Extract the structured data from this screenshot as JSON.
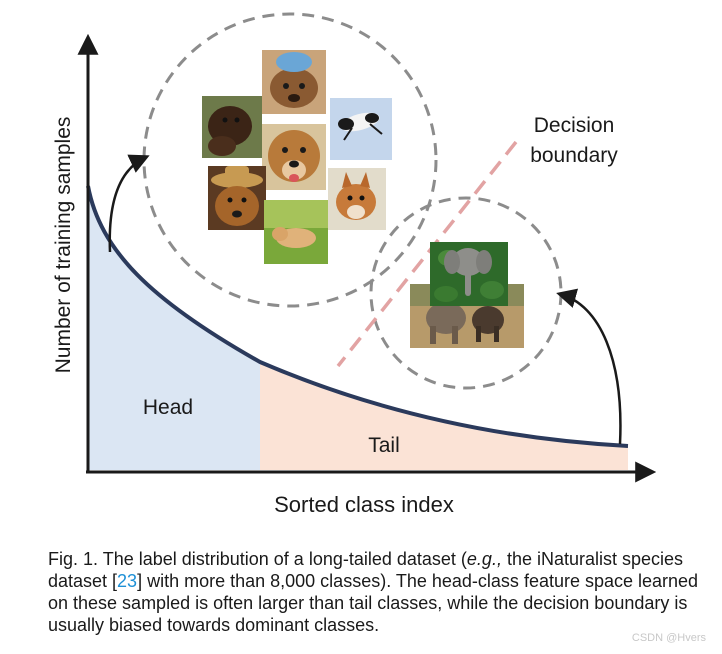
{
  "figure": {
    "y_axis_label": "Number of training samples",
    "x_axis_label": "Sorted class index",
    "head_label": "Head",
    "tail_label": "Tail",
    "boundary_label_line1": "Decision",
    "boundary_label_line2": "boundary",
    "colors": {
      "head_fill": "#dbe6f3",
      "tail_fill": "#fbe3d6",
      "curve": "#2b3a5c",
      "boundary": "#e2a3a3",
      "circle": "#8c8c8c",
      "axis": "#1a1a1a"
    },
    "images": {
      "head_cluster": [
        "dog-with-ice-pack",
        "dog-running",
        "dog-dark-fluffy",
        "dog-golden-retriever",
        "dog-wearing-hat",
        "dog-fox-like",
        "dog-lying-on-grass"
      ],
      "tail_cluster": [
        "elephant-in-foliage",
        "elephants-walking"
      ]
    }
  },
  "caption": {
    "part1": "Fig. 1. The label distribution of a long-tailed dataset (",
    "eg": "e.g.,",
    "part2": " the iNaturalist species dataset [",
    "ref": "23",
    "part3": "] with more than 8,000 classes). The head-class feature space learned on these sampled is often larger than tail classes, while the decision boundary is usually biased towards dominant classes."
  },
  "watermark": "CSDN @Hvers"
}
